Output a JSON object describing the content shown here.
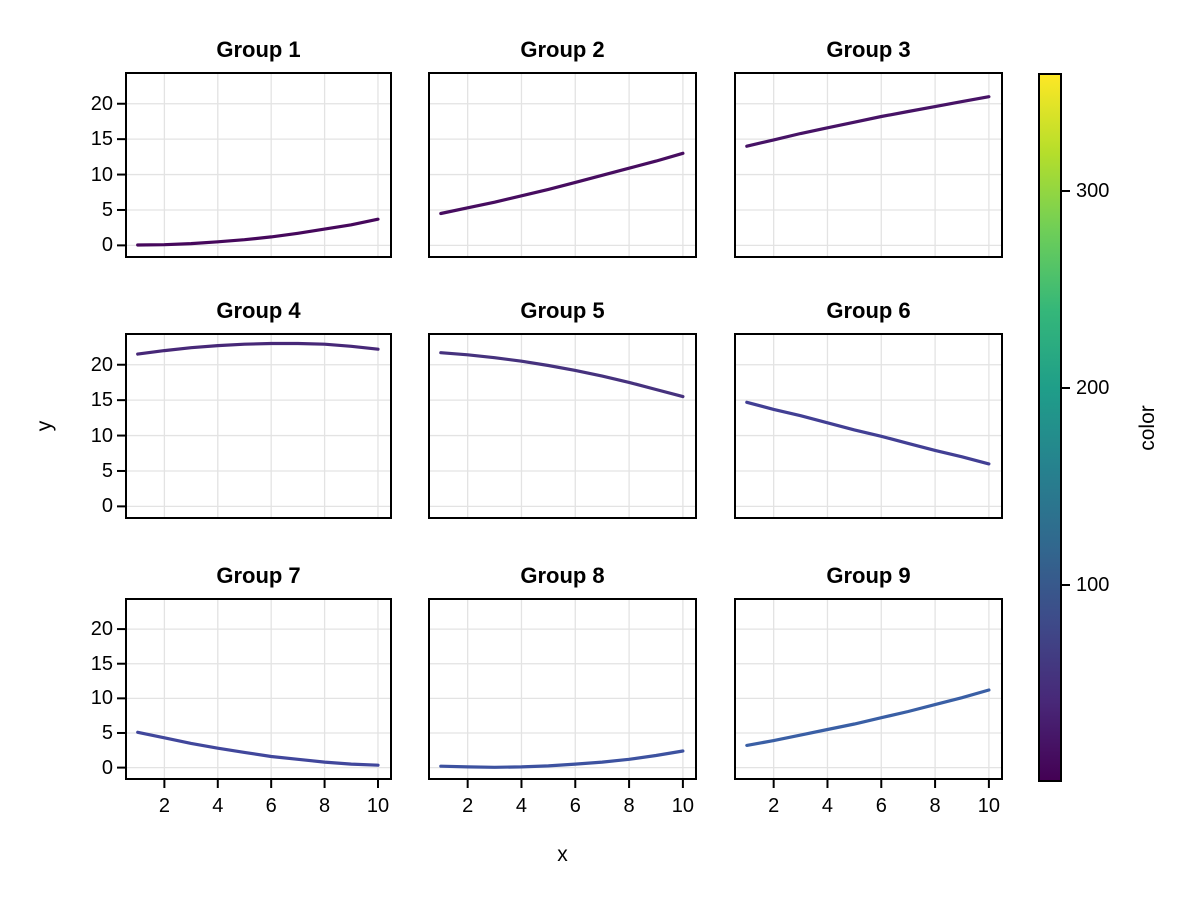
{
  "figure": {
    "background": "#ffffff",
    "text_color": "#000000",
    "grid_color": "#e3e3e3",
    "spine_color": "#000000",
    "xlabel": "x",
    "ylabel": "y"
  },
  "chart_data": {
    "type": "line",
    "layout": "3x3-facet-grid",
    "title": "",
    "xlabel": "x",
    "ylabel": "y",
    "x": [
      1,
      2,
      3,
      4,
      5,
      6,
      7,
      8,
      9,
      10
    ],
    "xlim": [
      0.6,
      10.45
    ],
    "ylim": [
      -1.5,
      24.2
    ],
    "xticks": [
      2,
      4,
      6,
      8,
      10
    ],
    "yticks": [
      0,
      5,
      10,
      15,
      20
    ],
    "grid": true,
    "series": [
      {
        "name": "Group 1",
        "color": "#46085c",
        "values": [
          0.05,
          0.1,
          0.25,
          0.5,
          0.8,
          1.2,
          1.7,
          2.3,
          2.9,
          3.7
        ]
      },
      {
        "name": "Group 2",
        "color": "#470d60",
        "values": [
          4.5,
          5.3,
          6.1,
          7.0,
          7.9,
          8.9,
          9.9,
          10.9,
          11.9,
          13.0
        ]
      },
      {
        "name": "Group 3",
        "color": "#471366",
        "values": [
          14.0,
          14.9,
          15.8,
          16.6,
          17.4,
          18.2,
          18.9,
          19.6,
          20.3,
          21.0
        ]
      },
      {
        "name": "Group 4",
        "color": "#472878",
        "values": [
          21.5,
          22.0,
          22.4,
          22.7,
          22.9,
          23.0,
          23.0,
          22.9,
          22.6,
          22.2
        ]
      },
      {
        "name": "Group 5",
        "color": "#46327e",
        "values": [
          21.7,
          21.4,
          21.0,
          20.5,
          19.9,
          19.2,
          18.4,
          17.5,
          16.5,
          15.5
        ]
      },
      {
        "name": "Group 6",
        "color": "#423f94",
        "values": [
          14.7,
          13.7,
          12.8,
          11.8,
          10.8,
          9.9,
          8.9,
          7.9,
          7.0,
          6.0
        ]
      },
      {
        "name": "Group 7",
        "color": "#41479c",
        "values": [
          5.1,
          4.3,
          3.5,
          2.8,
          2.2,
          1.6,
          1.2,
          0.8,
          0.5,
          0.35
        ]
      },
      {
        "name": "Group 8",
        "color": "#3d52a0",
        "values": [
          0.2,
          0.1,
          0.05,
          0.1,
          0.25,
          0.5,
          0.8,
          1.2,
          1.75,
          2.4
        ]
      },
      {
        "name": "Group 9",
        "color": "#3a5fa5",
        "values": [
          3.2,
          3.9,
          4.7,
          5.5,
          6.3,
          7.2,
          8.1,
          9.1,
          10.1,
          11.2
        ]
      }
    ],
    "colorbar": {
      "label": "color",
      "min": 0,
      "max": 360,
      "ticks": [
        100,
        200,
        300
      ],
      "colormap": "viridis",
      "gradient_stops": [
        "#440154",
        "#482878",
        "#3e4a89",
        "#31688e",
        "#26828e",
        "#1f9e89",
        "#35b779",
        "#6ece58",
        "#b5de2b",
        "#fde725"
      ]
    }
  }
}
